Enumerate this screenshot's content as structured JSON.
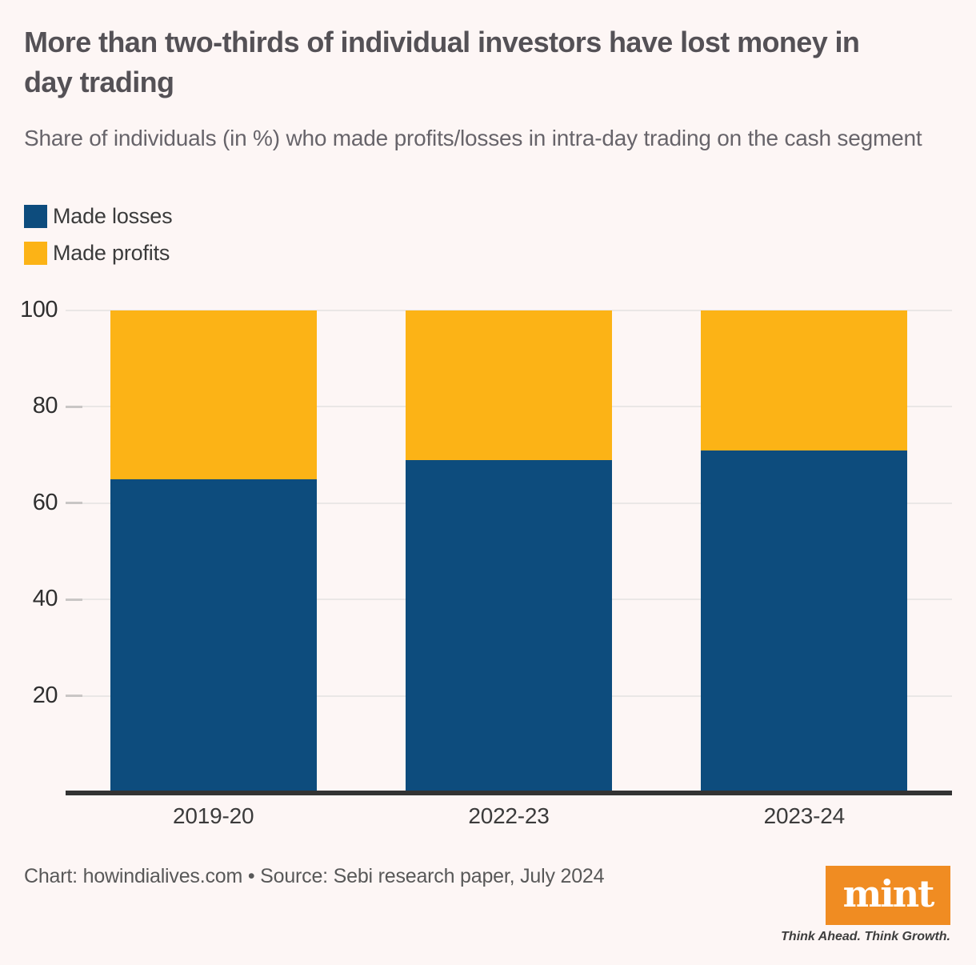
{
  "page": {
    "title": "More than two-thirds of individual investors have lost money in day trading",
    "subtitle": "Share of individuals (in %) who made profits/losses in intra-day trading on the cash segment",
    "footer": "Chart: howindialives.com • Source: Sebi research paper, July 2024"
  },
  "brand": {
    "logo_text": "mint",
    "tagline": "Think Ahead. Think Growth.",
    "logo_bg": "#f08c22"
  },
  "colors": {
    "background": "#fdf6f5",
    "losses_blue": "#0d4c7d",
    "profits_yellow": "#fcb316",
    "baseline": "#333333",
    "gridline": "#eae7e6"
  },
  "chart_data": {
    "type": "bar",
    "stacked": true,
    "title": "More than two-thirds of individual investors have lost money in day trading",
    "subtitle": "Share of individuals (in %) who made profits/losses in intra-day trading on the cash segment",
    "categories": [
      "2019-20",
      "2022-23",
      "2023-24"
    ],
    "series": [
      {
        "name": "Made losses",
        "color": "#0d4c7d",
        "values": [
          65,
          69,
          71
        ]
      },
      {
        "name": "Made profits",
        "color": "#fcb316",
        "values": [
          35,
          31,
          29
        ]
      }
    ],
    "xlabel": "",
    "ylabel": "",
    "ylim": [
      0,
      100
    ],
    "yticks": [
      20,
      40,
      60,
      80,
      100
    ],
    "grid": true,
    "legend_position": "top-left"
  }
}
